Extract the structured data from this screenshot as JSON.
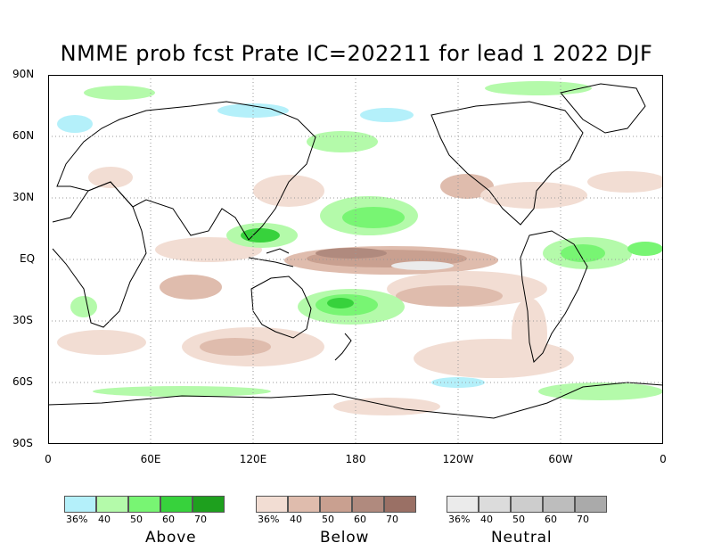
{
  "title": "NMME prob fcst Prate IC=202211 for lead 1 2022 DJF",
  "axes": {
    "y_labels": [
      "90N",
      "60N",
      "30N",
      "EQ",
      "30S",
      "60S",
      "90S"
    ],
    "y_values": [
      90,
      60,
      30,
      0,
      -30,
      -60,
      -90
    ],
    "x_labels": [
      "0",
      "60E",
      "120E",
      "180",
      "120W",
      "60W",
      "0"
    ],
    "x_values": [
      0,
      60,
      120,
      180,
      240,
      300,
      360
    ],
    "lon_range": [
      0,
      360
    ],
    "lat_range": [
      -90,
      90
    ],
    "grid": "dotted"
  },
  "legends": [
    {
      "id": "above",
      "title": "Above",
      "ticks": [
        "36%",
        "40",
        "50",
        "60",
        "70"
      ],
      "colors": [
        "#b4f0fa",
        "#b4faaa",
        "#78f573",
        "#37d23c",
        "#1ea01e"
      ]
    },
    {
      "id": "below",
      "title": "Below",
      "ticks": [
        "36%",
        "40",
        "50",
        "60",
        "70"
      ],
      "colors": [
        "#f2ddd3",
        "#dfbcad",
        "#c9a090",
        "#b08a7e",
        "#9a7065"
      ]
    },
    {
      "id": "neutral",
      "title": "Neutral",
      "ticks": [
        "36%",
        "40",
        "50",
        "60",
        "70"
      ],
      "colors": [
        "#ebebeb",
        "#dcdcdc",
        "#cdcdcd",
        "#bdbdbd",
        "#aaaaaa"
      ]
    }
  ],
  "map_colors": {
    "coast": "#000000",
    "grid": "#999999",
    "frame": "#000000"
  }
}
